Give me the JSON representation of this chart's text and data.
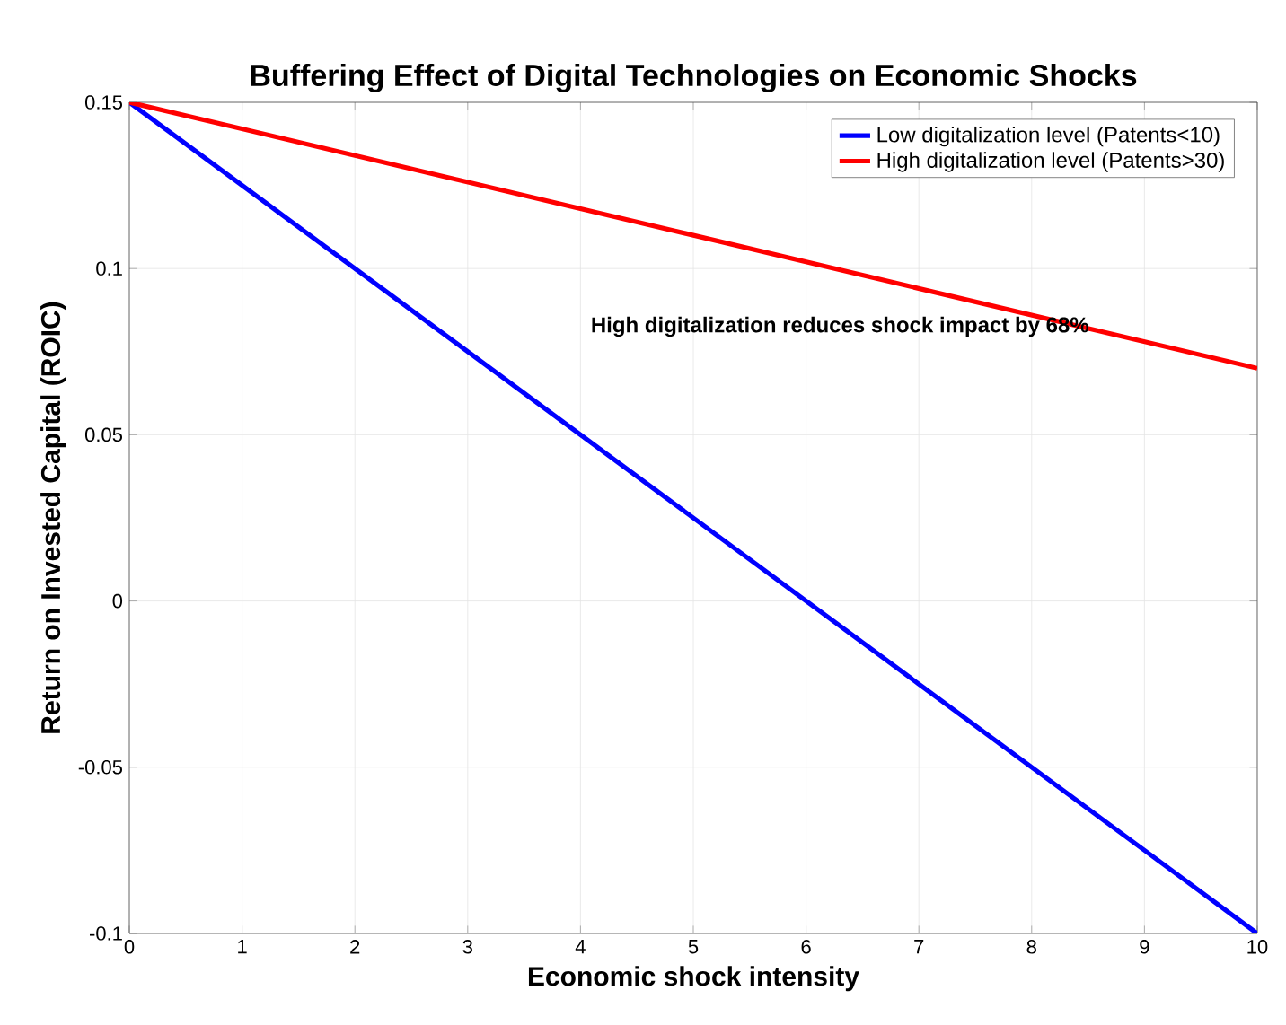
{
  "chart_data": {
    "type": "line",
    "title": "Buffering Effect of Digital Technologies on Economic Shocks",
    "xlabel": "Economic shock intensity",
    "ylabel": "Return on Invested Capital (ROIC)",
    "annotations": [
      "High digitalization reduces shock impact by 68%"
    ],
    "x": [
      0,
      10
    ],
    "series": [
      {
        "name": "Low digitalization level (Patents<10)",
        "color": "#0000ff",
        "values": [
          0.15,
          -0.1
        ]
      },
      {
        "name": "High digitalization level (Patents>30)",
        "color": "#ff0000",
        "values": [
          0.15,
          0.07
        ]
      }
    ],
    "xlim": [
      0,
      10
    ],
    "ylim": [
      -0.1,
      0.15
    ],
    "xticks": [
      0,
      1,
      2,
      3,
      4,
      5,
      6,
      7,
      8,
      9,
      10
    ],
    "yticks": [
      -0.1,
      -0.05,
      0,
      0.05,
      0.1,
      0.15
    ],
    "grid": true,
    "legend": "top right",
    "line_style": "solid",
    "marker": "none"
  }
}
